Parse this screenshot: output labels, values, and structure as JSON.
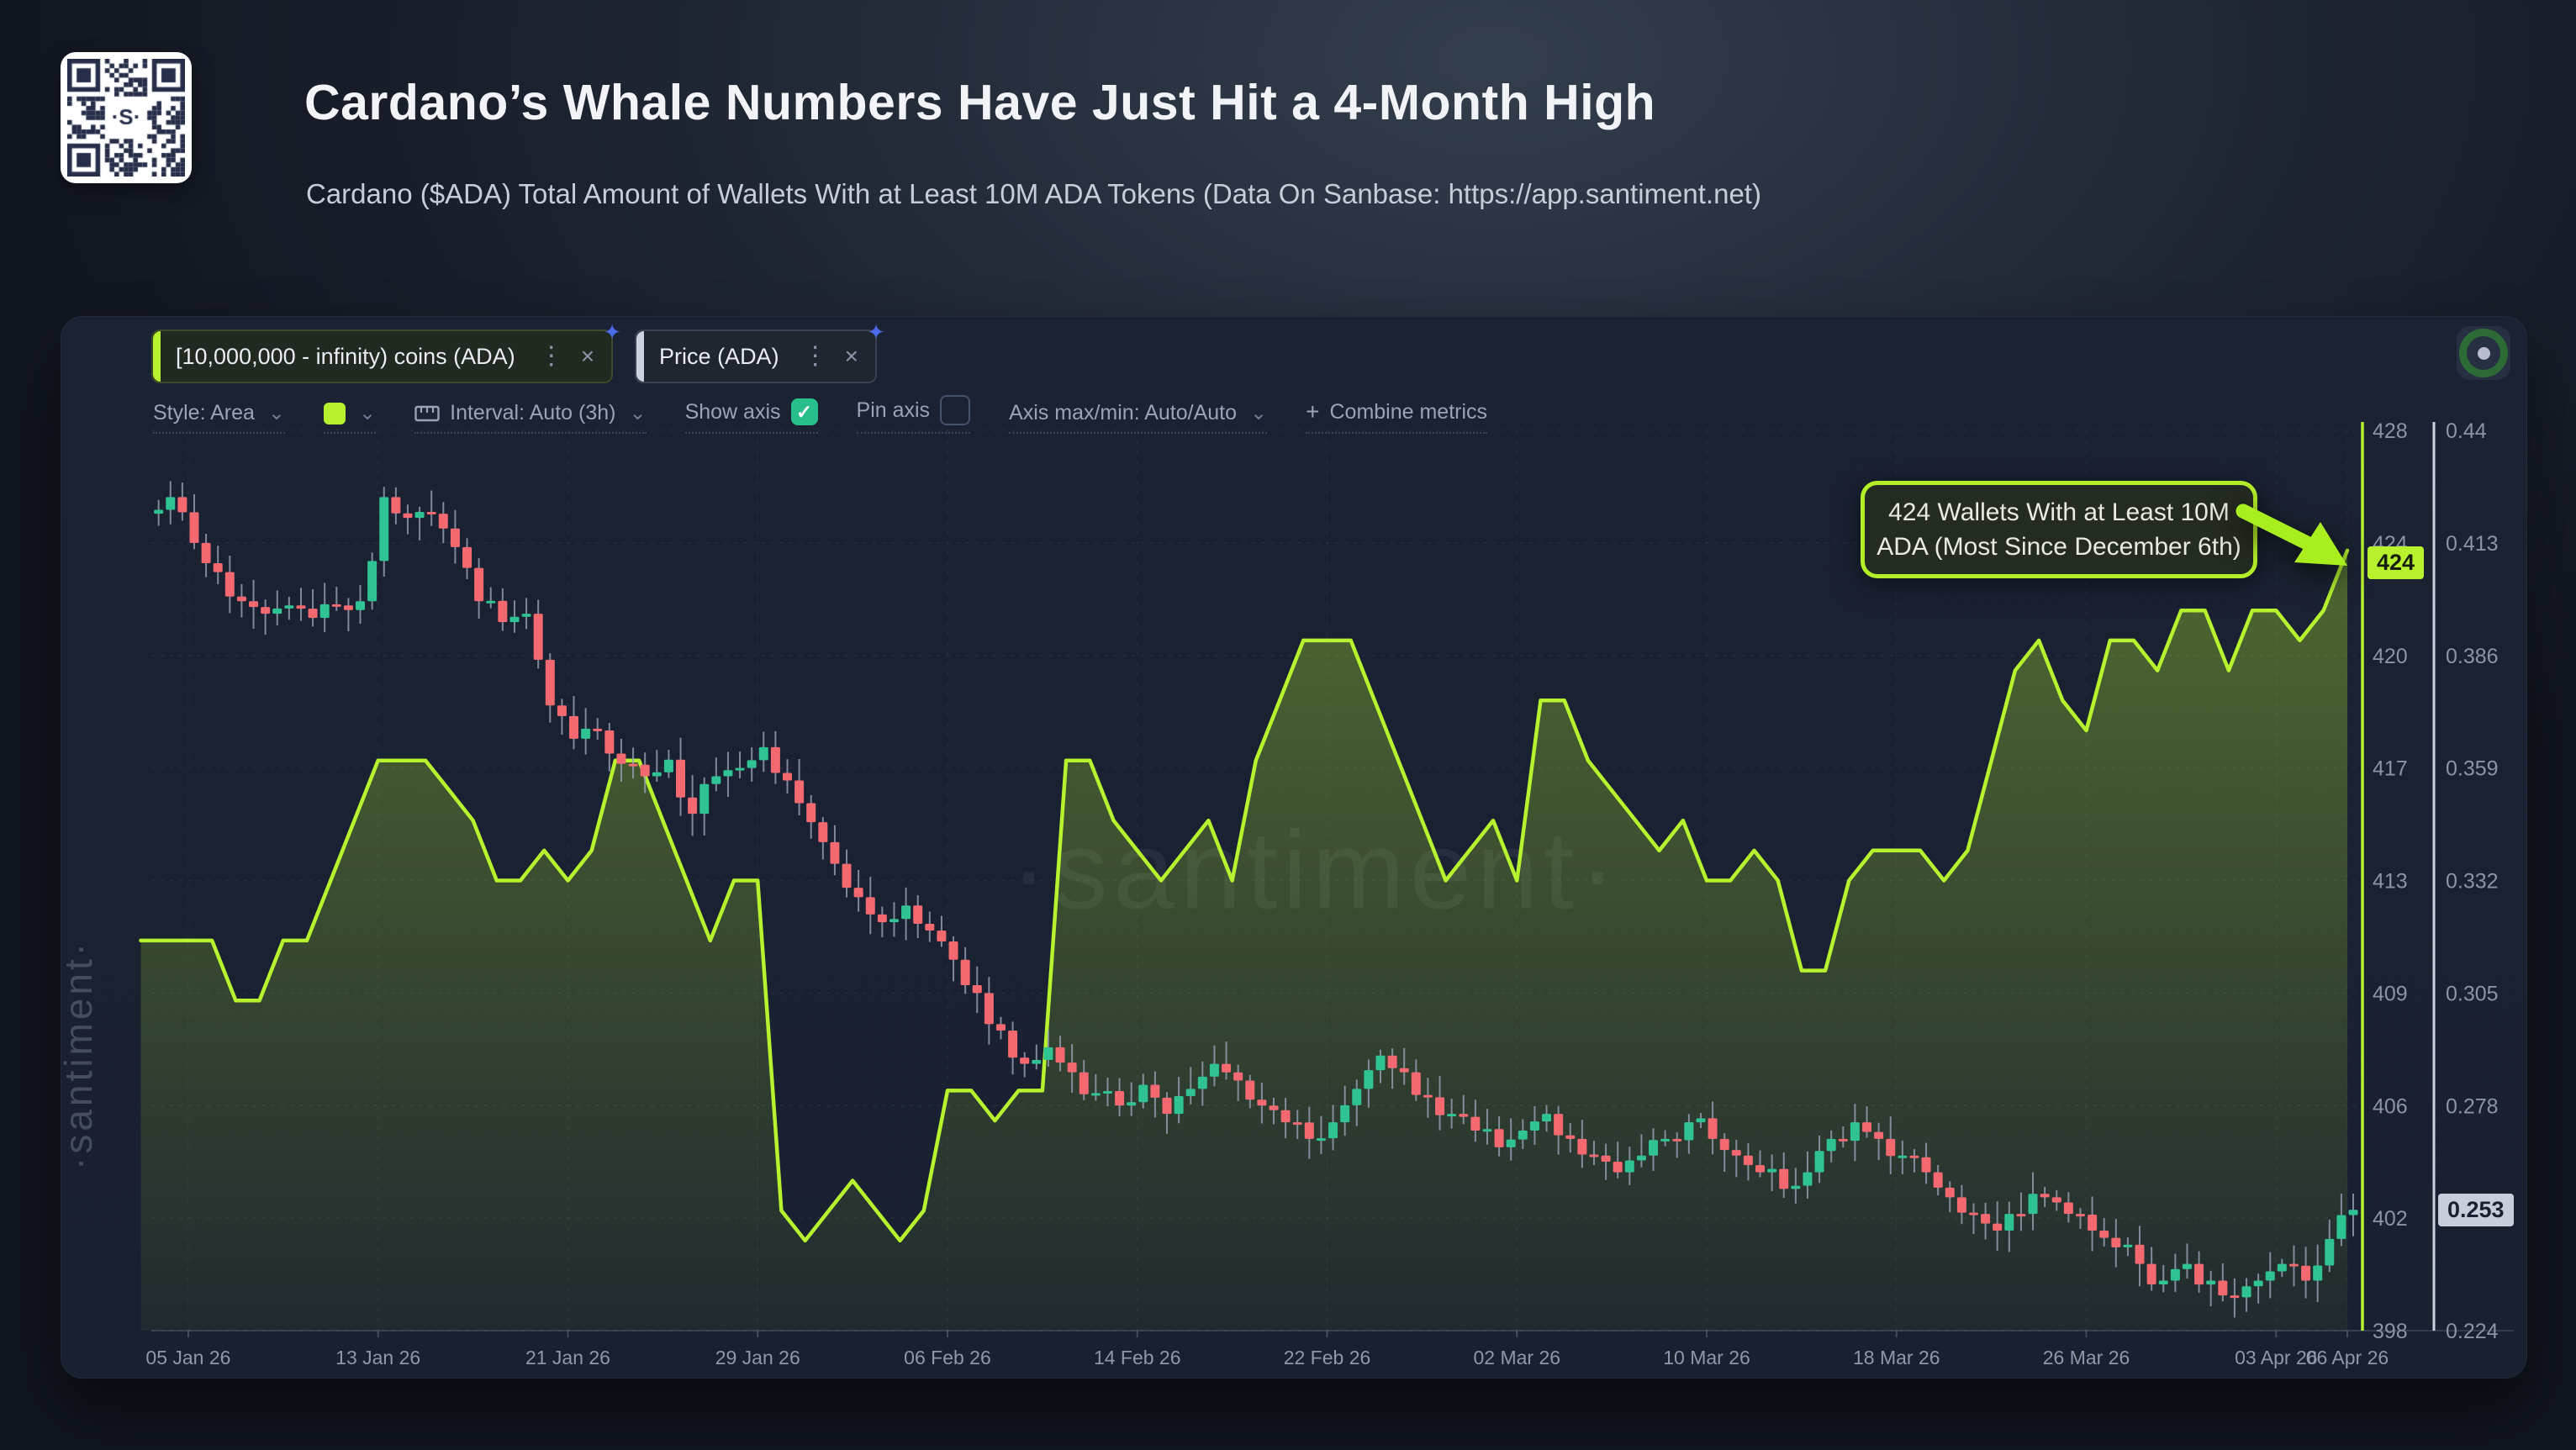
{
  "header": {
    "title": "Cardano’s Whale Numbers Have Just Hit a 4-Month High",
    "subtitle": "Cardano ($ADA) Total Amount of Wallets With at Least 10M ADA Tokens (Data On Sanbase: https://app.santiment.net)",
    "qr_center_label": "·S·"
  },
  "chart_panel": {
    "metric_chips": [
      {
        "label": "[10,000,000 - infinity) coins (ADA)",
        "accent_color": "#b6f22e",
        "menu_icon": "⋮",
        "close_icon": "×"
      },
      {
        "label": "Price (ADA)",
        "accent_color": "#cdd3de",
        "menu_icon": "⋮",
        "close_icon": "×"
      }
    ],
    "toolbar": {
      "style_label": "Style: Area",
      "swatch_color": "#b6f22e",
      "interval_label": "Interval: Auto (3h)",
      "show_axis_label": "Show axis",
      "show_axis_checked": true,
      "check_glyph": "✓",
      "pin_axis_label": "Pin axis",
      "pin_axis_checked": false,
      "axis_maxmin_label": "Axis max/min: Auto/Auto",
      "combine_plus": "+",
      "combine_label": "Combine metrics"
    },
    "watermark_side": "·santiment·",
    "watermark_center": "·santiment·",
    "annotation": {
      "line1": "424 Wallets With at Least 10M",
      "line2": "ADA (Most Since December 6th)"
    },
    "current_badges": {
      "wallets": "424",
      "price": "0.253"
    }
  },
  "chart_data": {
    "type": "mixed",
    "grid": true,
    "legend_position": "top-left-chips",
    "x_start_date": "03 Jan 26",
    "x_tick_labels": [
      "05 Jan 26",
      "13 Jan 26",
      "21 Jan 26",
      "29 Jan 26",
      "06 Feb 26",
      "14 Feb 26",
      "22 Feb 26",
      "02 Mar 26",
      "10 Mar 26",
      "18 Mar 26",
      "26 Mar 26",
      "03 Apr 26",
      "06 Apr 26"
    ],
    "x_tick_day_index": [
      2,
      10,
      18,
      26,
      34,
      42,
      50,
      58,
      66,
      74,
      82,
      90,
      93
    ],
    "y_axis_wallets": {
      "ticks": [
        428,
        424,
        420,
        417,
        413,
        409,
        406,
        402,
        398
      ],
      "min": 398,
      "max": 428,
      "color": "#b6f22e"
    },
    "y_axis_price": {
      "ticks": [
        0.44,
        0.413,
        0.386,
        0.359,
        0.332,
        0.305,
        0.278,
        0.251,
        0.224
      ],
      "min": 0.224,
      "max": 0.44,
      "color": "#cdd3de"
    },
    "series": [
      {
        "name": "[10,000,000 - infinity) coins (ADA)",
        "type": "area",
        "color": "#b6f22e",
        "values": [
          411,
          411,
          411,
          411,
          409,
          409,
          411,
          411,
          413,
          415,
          417,
          417,
          417,
          416,
          415,
          413,
          413,
          414,
          413,
          414,
          417,
          417,
          415,
          413,
          411,
          413,
          413,
          402,
          401,
          402,
          403,
          402,
          401,
          402,
          406,
          406,
          405,
          406,
          406,
          417,
          417,
          415,
          414,
          413,
          414,
          415,
          413,
          417,
          419,
          421,
          421,
          421,
          419,
          417,
          415,
          413,
          414,
          415,
          413,
          419,
          419,
          417,
          416,
          415,
          414,
          415,
          413,
          413,
          414,
          413,
          410,
          410,
          413,
          414,
          414,
          414,
          413,
          414,
          417,
          420,
          421,
          419,
          418,
          421,
          421,
          420,
          422,
          422,
          420,
          422,
          422,
          421,
          422,
          424
        ],
        "last_value": 424
      },
      {
        "name": "Price (ADA)",
        "type": "candlestick",
        "up_color": "#2fc393",
        "down_color": "#f4686f",
        "wick_color": "#99a2b8",
        "close_values": [
          0.42,
          0.424,
          0.413,
          0.406,
          0.399,
          0.396,
          0.398,
          0.395,
          0.398,
          0.399,
          0.424,
          0.419,
          0.42,
          0.412,
          0.399,
          0.394,
          0.396,
          0.374,
          0.366,
          0.368,
          0.36,
          0.357,
          0.361,
          0.348,
          0.357,
          0.359,
          0.364,
          0.356,
          0.346,
          0.336,
          0.328,
          0.322,
          0.326,
          0.32,
          0.313,
          0.305,
          0.296,
          0.288,
          0.292,
          0.286,
          0.281,
          0.278,
          0.283,
          0.276,
          0.282,
          0.288,
          0.284,
          0.278,
          0.274,
          0.27,
          0.274,
          0.282,
          0.29,
          0.286,
          0.28,
          0.276,
          0.272,
          0.268,
          0.272,
          0.276,
          0.27,
          0.266,
          0.262,
          0.266,
          0.27,
          0.274,
          0.27,
          0.266,
          0.262,
          0.258,
          0.262,
          0.27,
          0.274,
          0.27,
          0.266,
          0.262,
          0.256,
          0.252,
          0.248,
          0.252,
          0.256,
          0.252,
          0.248,
          0.244,
          0.24,
          0.236,
          0.24,
          0.236,
          0.232,
          0.236,
          0.24,
          0.236,
          0.246,
          0.253
        ],
        "last_value": 0.253
      }
    ]
  }
}
